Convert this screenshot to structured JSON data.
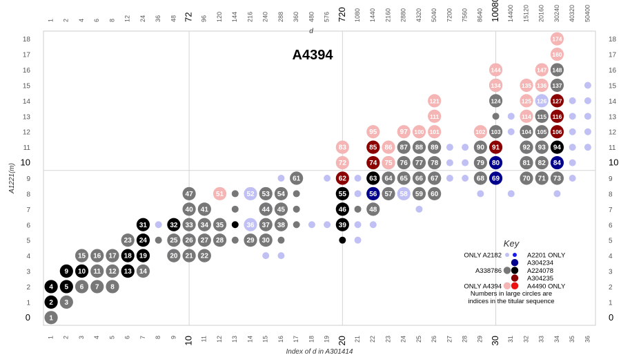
{
  "chart_data": {
    "type": "scatter",
    "title": "A4394",
    "xlabel": "Index of d in A301414",
    "x2label": "d",
    "ylabel": "A1221(m)",
    "x_ticks": [
      "1",
      "2",
      "3",
      "4",
      "5",
      "6",
      "7",
      "8",
      "9",
      "10",
      "11",
      "12",
      "13",
      "14",
      "15",
      "16",
      "17",
      "18",
      "19",
      "20",
      "21",
      "22",
      "23",
      "24",
      "25",
      "26",
      "27",
      "28",
      "29",
      "30",
      "31",
      "32",
      "33",
      "34",
      "35",
      "36"
    ],
    "x_big_ticks": [
      "10",
      "20",
      "30"
    ],
    "top_ticks": [
      "1",
      "2",
      "4",
      "6",
      "8",
      "12",
      "24",
      "36",
      "48",
      "72",
      "96",
      "120",
      "144",
      "216",
      "240",
      "288",
      "360",
      "480",
      "576",
      "720",
      "1080",
      "1440",
      "2160",
      "2880",
      "4320",
      "5040",
      "7200",
      "7560",
      "8640",
      "10080",
      "14400",
      "15120",
      "20160",
      "30240",
      "40320",
      "50400"
    ],
    "top_big_ticks": [
      "72",
      "720",
      "10080"
    ],
    "y_ticks": [
      "0",
      "1",
      "2",
      "3",
      "4",
      "5",
      "6",
      "7",
      "8",
      "9",
      "10",
      "11",
      "12",
      "13",
      "14",
      "15",
      "16",
      "17",
      "18"
    ],
    "y_big_ticks": [
      "0",
      "10"
    ],
    "x_range": [
      0.5,
      36.5
    ],
    "y_range": [
      -0.5,
      18.5
    ],
    "guides": {
      "x": [
        10,
        20,
        30
      ],
      "y": [
        9.5
      ]
    },
    "colors": {
      "A2182": "#c0c0f5",
      "A2201": "#1a1aee",
      "A304234": "#00008c",
      "A338786": "#777777",
      "A224078": "#000000",
      "A304235": "#8b0000",
      "A4394": "#f5b5b5",
      "A4490": "#ee1111"
    },
    "categories_order": [
      "A2182",
      "A338786",
      "A224078",
      "A304234",
      "A304235",
      "A4394"
    ],
    "points": {
      "A2182": [
        [
          8,
          6
        ],
        [
          10,
          5
        ],
        [
          9,
          4
        ],
        [
          13,
          8
        ],
        [
          14,
          8
        ],
        [
          15,
          4
        ],
        [
          14,
          6
        ],
        [
          15,
          7
        ],
        [
          16,
          4
        ],
        [
          16,
          9
        ],
        [
          18,
          6
        ],
        [
          19,
          6
        ],
        [
          19,
          9
        ],
        [
          20,
          8
        ],
        [
          21,
          5
        ],
        [
          21,
          6
        ],
        [
          21,
          8
        ],
        [
          22,
          6
        ],
        [
          21,
          9
        ],
        [
          24,
          8
        ],
        [
          25,
          7
        ],
        [
          26,
          9
        ],
        [
          27,
          9
        ],
        [
          27,
          10
        ],
        [
          27,
          11
        ],
        [
          28,
          9
        ],
        [
          28,
          10
        ],
        [
          28,
          11
        ],
        [
          29,
          8
        ],
        [
          31,
          8
        ],
        [
          31,
          12
        ],
        [
          31,
          13
        ],
        [
          32,
          10
        ],
        [
          32,
          11
        ],
        [
          32,
          12
        ],
        [
          33,
          11
        ],
        [
          33,
          13
        ],
        [
          33,
          14
        ],
        [
          34,
          8
        ],
        [
          35,
          9
        ],
        [
          35,
          10
        ],
        [
          35,
          11
        ],
        [
          35,
          12
        ],
        [
          35,
          13
        ],
        [
          35,
          14
        ],
        [
          36,
          11
        ],
        [
          36,
          12
        ],
        [
          36,
          13
        ],
        [
          36,
          14
        ],
        [
          36,
          15
        ]
      ],
      "A338786": [
        [
          1,
          0
        ],
        [
          2,
          1
        ],
        [
          3,
          2
        ],
        [
          4,
          2
        ],
        [
          5,
          2
        ],
        [
          4,
          3
        ],
        [
          5,
          3
        ],
        [
          6,
          3
        ],
        [
          7,
          3
        ],
        [
          3,
          4
        ],
        [
          4,
          4
        ],
        [
          5,
          4
        ],
        [
          6,
          5
        ],
        [
          7,
          4
        ],
        [
          8,
          5
        ],
        [
          9,
          4
        ],
        [
          9,
          5
        ],
        [
          10,
          4
        ],
        [
          10,
          5
        ],
        [
          10,
          6
        ],
        [
          10,
          7
        ],
        [
          10,
          8
        ],
        [
          11,
          4
        ],
        [
          11,
          5
        ],
        [
          11,
          6
        ],
        [
          11,
          7
        ],
        [
          12,
          6
        ],
        [
          12,
          5
        ],
        [
          13,
          5
        ],
        [
          13,
          7
        ],
        [
          13,
          8
        ],
        [
          14,
          5
        ],
        [
          15,
          5
        ],
        [
          15,
          6
        ],
        [
          15,
          7
        ],
        [
          15,
          8
        ],
        [
          16,
          5
        ],
        [
          16,
          6
        ],
        [
          16,
          7
        ],
        [
          16,
          8
        ],
        [
          17,
          6
        ],
        [
          17,
          7
        ],
        [
          17,
          8
        ],
        [
          17,
          9
        ],
        [
          21,
          7
        ],
        [
          22,
          7
        ],
        [
          22,
          8
        ],
        [
          22,
          9
        ],
        [
          23,
          8
        ],
        [
          23,
          9
        ],
        [
          23,
          10
        ],
        [
          24,
          9
        ],
        [
          24,
          10
        ],
        [
          24,
          11
        ],
        [
          25,
          8
        ],
        [
          25,
          9
        ],
        [
          25,
          10
        ],
        [
          25,
          11
        ],
        [
          26,
          8
        ],
        [
          26,
          9
        ],
        [
          26,
          10
        ],
        [
          26,
          11
        ],
        [
          29,
          9
        ],
        [
          29,
          10
        ],
        [
          29,
          11
        ],
        [
          30,
          12
        ],
        [
          30,
          13
        ],
        [
          30,
          14
        ],
        [
          30,
          15
        ],
        [
          32,
          9
        ],
        [
          32,
          10
        ],
        [
          32,
          11
        ],
        [
          32,
          12
        ],
        [
          33,
          9
        ],
        [
          33,
          10
        ],
        [
          33,
          11
        ],
        [
          33,
          12
        ],
        [
          33,
          13
        ],
        [
          34,
          9
        ],
        [
          34,
          15
        ],
        [
          34,
          16
        ]
      ],
      "A224078": [
        [
          1,
          1
        ],
        [
          1,
          2
        ],
        [
          2,
          2
        ],
        [
          2,
          3
        ],
        [
          3,
          3
        ],
        [
          6,
          3
        ],
        [
          6,
          4
        ],
        [
          7,
          4
        ],
        [
          7,
          5
        ],
        [
          7,
          6
        ],
        [
          9,
          6
        ],
        [
          13,
          6
        ],
        [
          20,
          5
        ],
        [
          20,
          6
        ],
        [
          20,
          7
        ],
        [
          20,
          8
        ],
        [
          22,
          9
        ],
        [
          34,
          11
        ]
      ],
      "A304234": [
        [
          22,
          8
        ],
        [
          30,
          9
        ],
        [
          30,
          10
        ],
        [
          34,
          10
        ]
      ],
      "A304235": [
        [
          20,
          9
        ],
        [
          22,
          10
        ],
        [
          22,
          11
        ],
        [
          30,
          11
        ],
        [
          34,
          12
        ],
        [
          34,
          13
        ],
        [
          34,
          14
        ]
      ],
      "A4394": [
        [
          12,
          8
        ],
        [
          20,
          10
        ],
        [
          20,
          11
        ],
        [
          22,
          12
        ],
        [
          23,
          11
        ],
        [
          23,
          10
        ],
        [
          24,
          12
        ],
        [
          25,
          12
        ],
        [
          26,
          12
        ],
        [
          26,
          13
        ],
        [
          26,
          14
        ],
        [
          29,
          12
        ],
        [
          30,
          16
        ],
        [
          30,
          15
        ],
        [
          32,
          13
        ],
        [
          32,
          14
        ],
        [
          32,
          15
        ],
        [
          33,
          15
        ],
        [
          33,
          16
        ],
        [
          34,
          17
        ],
        [
          34,
          18
        ]
      ]
    },
    "labels": [
      [
        1,
        0,
        "1"
      ],
      [
        2,
        1,
        "3"
      ],
      [
        1,
        1,
        "2"
      ],
      [
        1,
        2,
        "4"
      ],
      [
        2,
        2,
        "5"
      ],
      [
        3,
        2,
        "6"
      ],
      [
        4,
        2,
        "7"
      ],
      [
        5,
        2,
        "8"
      ],
      [
        2,
        3,
        "9"
      ],
      [
        3,
        3,
        "10"
      ],
      [
        4,
        3,
        "11"
      ],
      [
        5,
        3,
        "12"
      ],
      [
        6,
        3,
        "13"
      ],
      [
        7,
        3,
        "14"
      ],
      [
        3,
        4,
        "15"
      ],
      [
        4,
        4,
        "16"
      ],
      [
        5,
        4,
        "17"
      ],
      [
        6,
        4,
        "18"
      ],
      [
        7,
        4,
        "19"
      ],
      [
        9,
        4,
        "20"
      ],
      [
        10,
        4,
        "21"
      ],
      [
        11,
        4,
        "22"
      ],
      [
        6,
        5,
        "23"
      ],
      [
        7,
        5,
        "24"
      ],
      [
        9,
        5,
        "25"
      ],
      [
        10,
        5,
        "26"
      ],
      [
        11,
        5,
        "27"
      ],
      [
        12,
        5,
        "28"
      ],
      [
        14,
        5,
        "29"
      ],
      [
        15,
        5,
        "30"
      ],
      [
        7,
        6,
        "31"
      ],
      [
        9,
        6,
        "32"
      ],
      [
        10,
        6,
        "33"
      ],
      [
        11,
        6,
        "34"
      ],
      [
        12,
        6,
        "35"
      ],
      [
        14,
        6,
        "36"
      ],
      [
        15,
        6,
        "37"
      ],
      [
        16,
        6,
        "38"
      ],
      [
        20,
        6,
        "39"
      ],
      [
        10,
        7,
        "40"
      ],
      [
        11,
        7,
        "41"
      ],
      [
        12,
        7,
        "42"
      ],
      [
        14,
        7,
        "43"
      ],
      [
        15,
        7,
        "44"
      ],
      [
        16,
        7,
        "45"
      ],
      [
        20,
        7,
        "46"
      ],
      [
        10,
        8,
        "47"
      ],
      [
        22,
        7,
        "48"
      ],
      [
        23,
        7,
        "49"
      ],
      [
        11,
        8,
        "50"
      ],
      [
        12,
        8,
        "51"
      ],
      [
        14,
        8,
        "52"
      ],
      [
        15,
        8,
        "53"
      ],
      [
        16,
        8,
        "54"
      ],
      [
        20,
        8,
        "55"
      ],
      [
        22,
        8,
        "56"
      ],
      [
        23,
        8,
        "57"
      ],
      [
        24,
        8,
        "58"
      ],
      [
        25,
        8,
        "59"
      ],
      [
        26,
        8,
        "60"
      ],
      [
        17,
        9,
        "61"
      ],
      [
        20,
        9,
        "62"
      ],
      [
        22,
        9,
        "63"
      ],
      [
        23,
        9,
        "64"
      ],
      [
        24,
        9,
        "65"
      ],
      [
        25,
        9,
        "66"
      ],
      [
        26,
        9,
        "67"
      ],
      [
        29,
        9,
        "68"
      ],
      [
        30,
        9,
        "69"
      ],
      [
        32,
        9,
        "70"
      ],
      [
        33,
        9,
        "71"
      ],
      [
        20,
        10,
        "72"
      ],
      [
        34,
        9,
        "73"
      ],
      [
        22,
        10,
        "74"
      ],
      [
        23,
        10,
        "75"
      ],
      [
        24,
        10,
        "76"
      ],
      [
        25,
        10,
        "77"
      ],
      [
        26,
        10,
        "78"
      ],
      [
        29,
        10,
        "79"
      ],
      [
        30,
        10,
        "80"
      ],
      [
        32,
        10,
        "81"
      ],
      [
        33,
        10,
        "82"
      ],
      [
        20,
        11,
        "83"
      ],
      [
        34,
        10,
        "84"
      ],
      [
        22,
        11,
        "85"
      ],
      [
        23,
        11,
        "86"
      ],
      [
        24,
        11,
        "87"
      ],
      [
        25,
        11,
        "88"
      ],
      [
        26,
        11,
        "89"
      ],
      [
        29,
        11,
        "90"
      ],
      [
        30,
        11,
        "91"
      ],
      [
        32,
        11,
        "92"
      ],
      [
        33,
        11,
        "93"
      ],
      [
        34,
        11,
        "94"
      ],
      [
        22,
        12,
        "95"
      ],
      [
        24,
        12,
        "97"
      ],
      [
        25,
        12,
        "100"
      ],
      [
        26,
        12,
        "101"
      ],
      [
        29,
        12,
        "102"
      ],
      [
        30,
        12,
        "103"
      ],
      [
        32,
        12,
        "104"
      ],
      [
        33,
        12,
        "105"
      ],
      [
        34,
        12,
        "106"
      ],
      [
        26,
        13,
        "111"
      ],
      [
        32,
        13,
        "114"
      ],
      [
        33,
        13,
        "115"
      ],
      [
        34,
        13,
        "116"
      ],
      [
        26,
        14,
        "121"
      ],
      [
        30,
        14,
        "124"
      ],
      [
        32,
        14,
        "125"
      ],
      [
        33,
        14,
        "126"
      ],
      [
        34,
        14,
        "127"
      ],
      [
        30,
        15,
        "134"
      ],
      [
        32,
        15,
        "135"
      ],
      [
        33,
        15,
        "136"
      ],
      [
        34,
        15,
        "137"
      ],
      [
        30,
        16,
        "144"
      ],
      [
        33,
        16,
        "147"
      ],
      [
        34,
        16,
        "148"
      ],
      [
        34,
        17,
        "160"
      ],
      [
        34,
        18,
        "174"
      ]
    ],
    "key": {
      "title": "Key",
      "rows": [
        {
          "left": "ONLY A2182",
          "right": "A2201 ONLY",
          "left_color": "#c0c0f5",
          "right_color": "#1a1aee",
          "size": "small"
        },
        {
          "left": "",
          "right": "A304234",
          "left_color": "",
          "right_color": "#00008c",
          "size": "large"
        },
        {
          "left": "A338786",
          "right": "A224078",
          "left_color": "#777777",
          "right_color": "#000000",
          "size": "large"
        },
        {
          "left": "",
          "right": "A304235",
          "left_color": "",
          "right_color": "#8b0000",
          "size": "large"
        },
        {
          "left": "ONLY A4394",
          "right": "A4490 ONLY",
          "left_color": "#f5b5b5",
          "right_color": "#ee1111",
          "size": "large"
        }
      ],
      "note_line1": "Numbers in large circles are",
      "note_line2": "indices in the titular sequence"
    }
  }
}
